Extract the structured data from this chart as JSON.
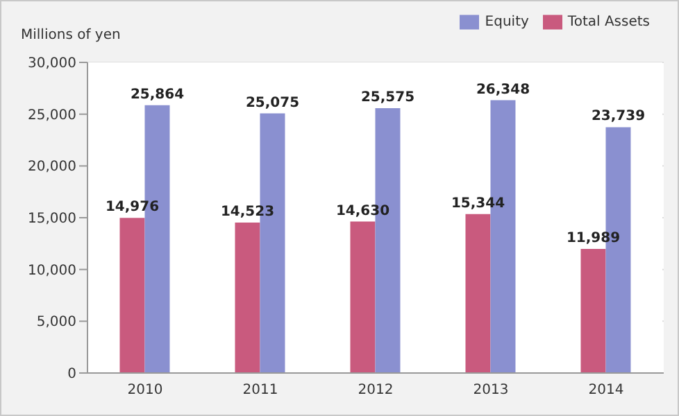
{
  "chart_data": {
    "type": "bar",
    "ylabel": "Millions of yen",
    "categories": [
      "2010",
      "2011",
      "2012",
      "2013",
      "2014"
    ],
    "series": [
      {
        "name": "Total Assets",
        "color": "#c95a7e",
        "values": [
          14976,
          14523,
          14630,
          15344,
          11989
        ],
        "value_labels": [
          "14,976",
          "14,523",
          "14,630",
          "15,344",
          "11,989"
        ]
      },
      {
        "name": "Equity",
        "color": "#8a90d0",
        "values": [
          25864,
          25075,
          25575,
          26348,
          23739
        ],
        "value_labels": [
          "25,864",
          "25,075",
          "25,575",
          "26,348",
          "23,739"
        ]
      }
    ],
    "ylim": [
      0,
      30000
    ],
    "yticks": [
      {
        "value": 0,
        "label": "0"
      },
      {
        "value": 5000,
        "label": "5,000"
      },
      {
        "value": 10000,
        "label": "10,000"
      },
      {
        "value": 15000,
        "label": "15,000"
      },
      {
        "value": 20000,
        "label": "20,000"
      },
      {
        "value": 25000,
        "label": "25,000"
      },
      {
        "value": 30000,
        "label": "30,000"
      }
    ],
    "grid": "y",
    "legend": "top right"
  }
}
